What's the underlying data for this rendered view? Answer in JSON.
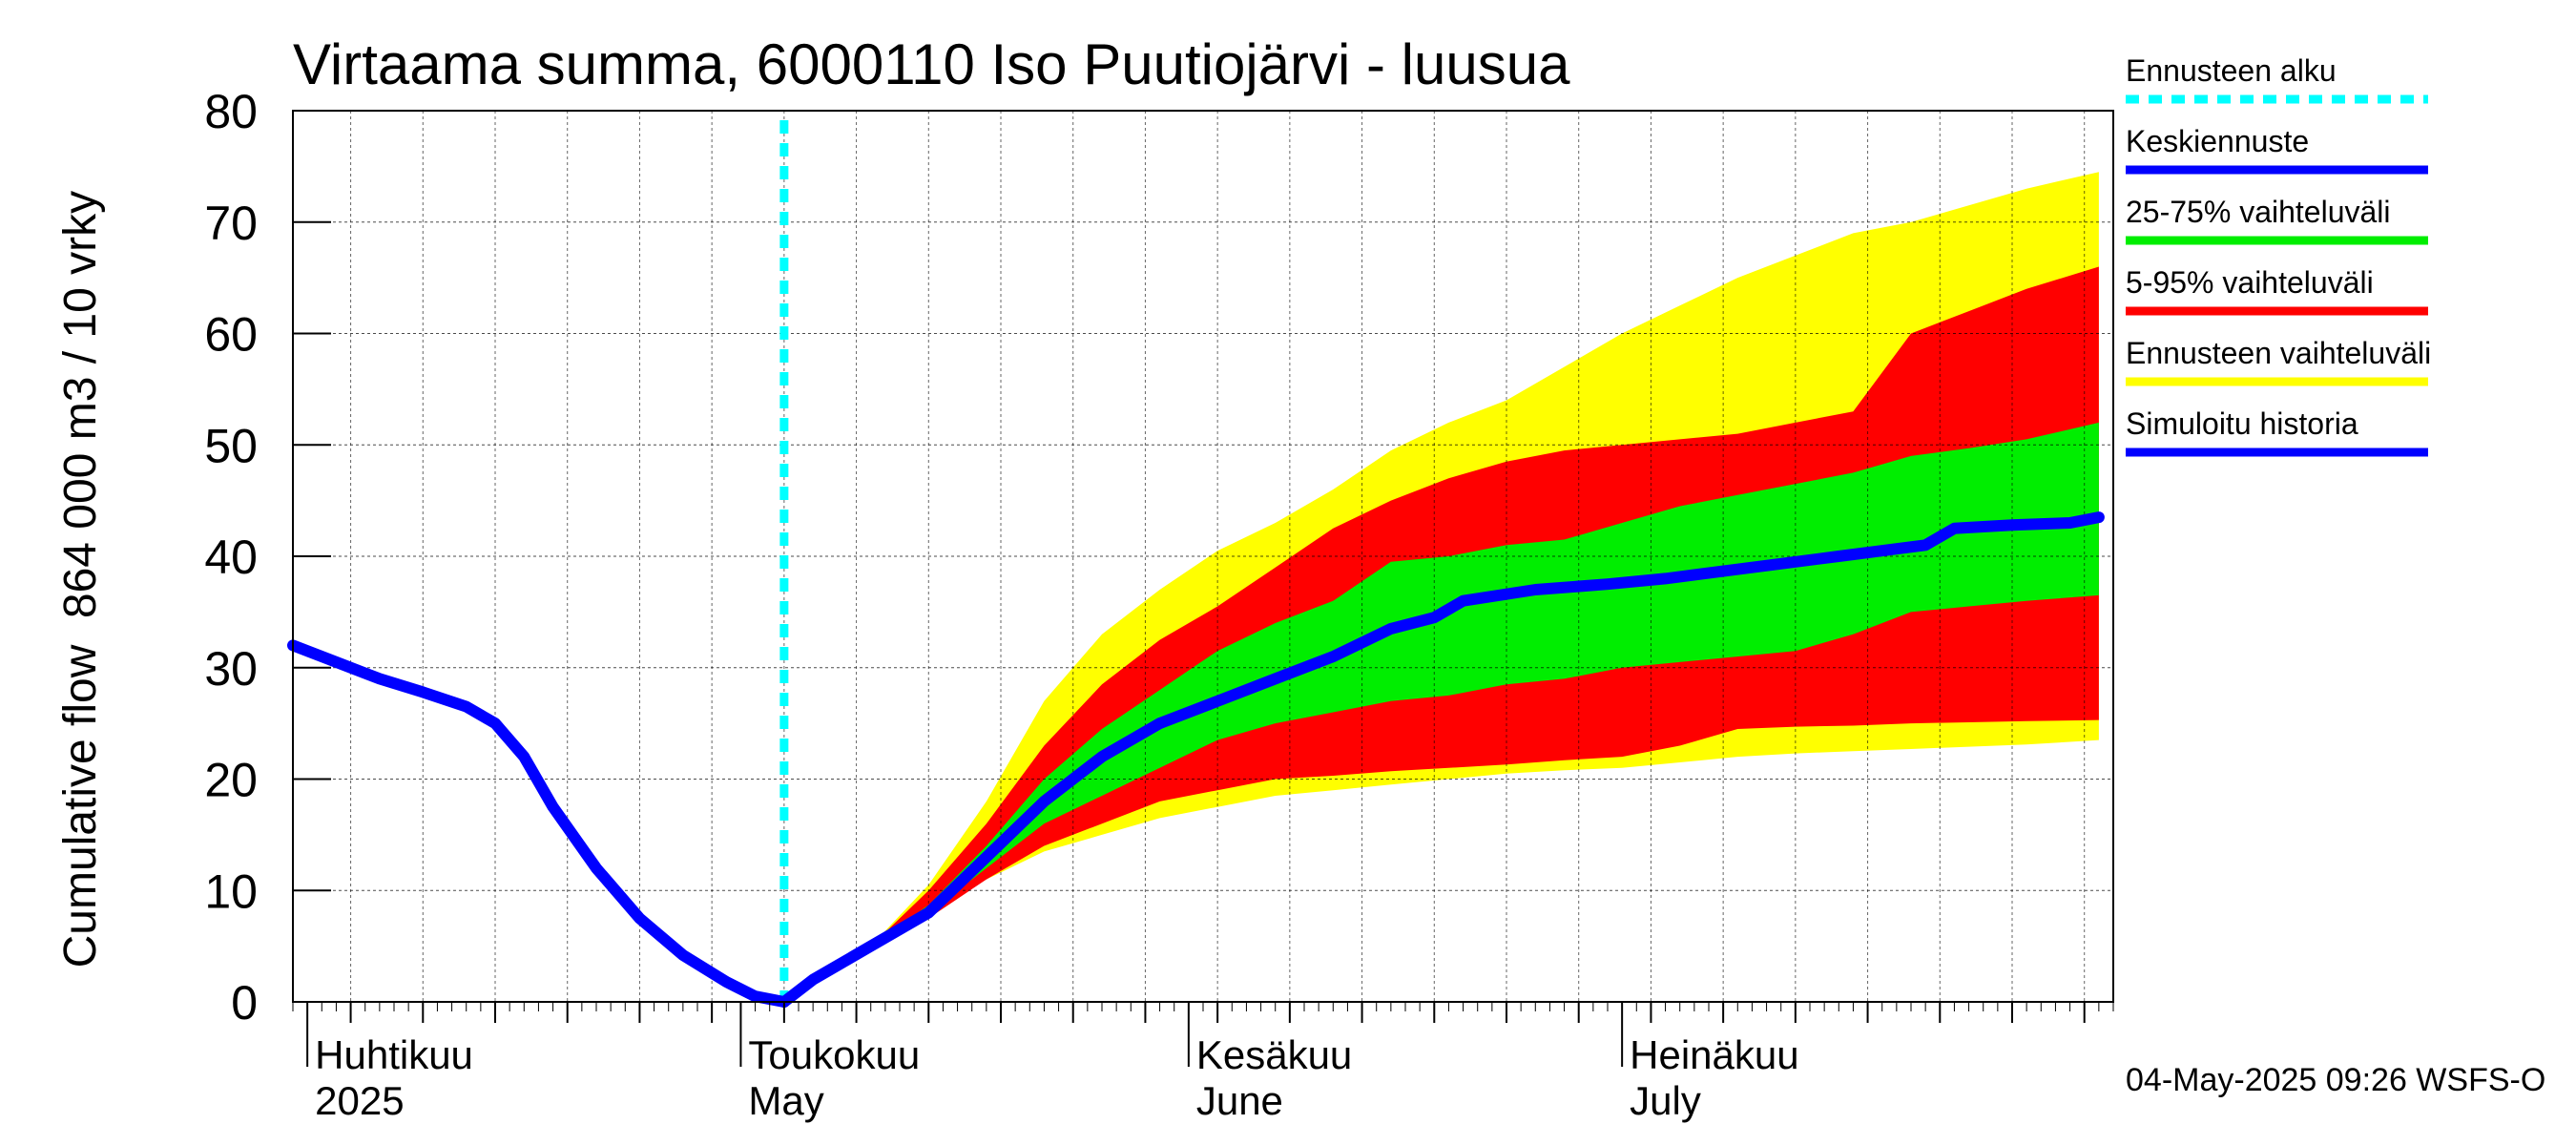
{
  "chart_data": {
    "type": "area",
    "title": "Virtaama summa, 6000110 Iso Puutiojärvi - luusua",
    "ylabel_lines": [
      "864 000 m3 / 10 vrky",
      "Cumulative flow"
    ],
    "xlabel": "",
    "ylim": [
      0,
      80
    ],
    "y_ticks": [
      0,
      10,
      20,
      30,
      40,
      50,
      60,
      70,
      80
    ],
    "xlim": [
      "2025-03-31",
      "2025-08-04"
    ],
    "month_labels": [
      {
        "date": "2025-04-01",
        "fi": "Huhtikuu",
        "en": "2025"
      },
      {
        "date": "2025-05-01",
        "fi": "Toukokuu",
        "en": "May"
      },
      {
        "date": "2025-06-01",
        "fi": "Kesäkuu",
        "en": "June"
      },
      {
        "date": "2025-07-01",
        "fi": "Heinäkuu",
        "en": "July"
      }
    ],
    "forecast_start": "2025-05-04",
    "grid": true,
    "legend_position": "right",
    "legend": [
      {
        "label": "Ennusteen alku",
        "color": "#00ffff",
        "style": "dashed"
      },
      {
        "label": "Keskiennuste",
        "color": "#0000ff",
        "style": "line"
      },
      {
        "label": "25-75% vaihteluväli",
        "color": "#00ee00",
        "style": "line"
      },
      {
        "label": "5-95% vaihteluväli",
        "color": "#ff0000",
        "style": "line"
      },
      {
        "label": "Ennusteen vaihteluväli",
        "color": "#ffff00",
        "style": "line"
      },
      {
        "label": "Simuloitu historia",
        "color": "#0000ff",
        "style": "line"
      }
    ],
    "history": {
      "name": "Simuloitu historia",
      "x": [
        "2025-03-31",
        "2025-04-03",
        "2025-04-06",
        "2025-04-09",
        "2025-04-12",
        "2025-04-14",
        "2025-04-16",
        "2025-04-18",
        "2025-04-21",
        "2025-04-24",
        "2025-04-27",
        "2025-04-30",
        "2025-05-02",
        "2025-05-04"
      ],
      "y": [
        32,
        30.5,
        29,
        27.8,
        26.5,
        25,
        22,
        17.5,
        12,
        7.5,
        4.2,
        1.8,
        0.5,
        0
      ]
    },
    "median": {
      "name": "Keskiennuste",
      "x": [
        "2025-05-04",
        "2025-05-06",
        "2025-05-10",
        "2025-05-14",
        "2025-05-18",
        "2025-05-22",
        "2025-05-26",
        "2025-05-30",
        "2025-06-03",
        "2025-06-07",
        "2025-06-11",
        "2025-06-15",
        "2025-06-18",
        "2025-06-20",
        "2025-06-25",
        "2025-06-30",
        "2025-07-04",
        "2025-07-10",
        "2025-07-16",
        "2025-07-22",
        "2025-07-24",
        "2025-07-28",
        "2025-08-01",
        "2025-08-03"
      ],
      "y": [
        0,
        2,
        5,
        8,
        13,
        18,
        22,
        25,
        27,
        29,
        31,
        33.5,
        34.5,
        36,
        37,
        37.5,
        38,
        39,
        40,
        41,
        42.5,
        42.8,
        43,
        43.5
      ]
    },
    "bands": {
      "x": [
        "2025-05-04",
        "2025-05-10",
        "2025-05-14",
        "2025-05-18",
        "2025-05-22",
        "2025-05-26",
        "2025-05-30",
        "2025-06-03",
        "2025-06-07",
        "2025-06-11",
        "2025-06-15",
        "2025-06-19",
        "2025-06-23",
        "2025-06-27",
        "2025-07-01",
        "2025-07-05",
        "2025-07-09",
        "2025-07-13",
        "2025-07-17",
        "2025-07-21",
        "2025-07-25",
        "2025-07-29",
        "2025-08-03"
      ],
      "p0": [
        0,
        5,
        8,
        11,
        13.5,
        15,
        16.5,
        17.5,
        18.5,
        19,
        19.5,
        20,
        20.5,
        20.8,
        21,
        21.5,
        22,
        22.3,
        22.5,
        22.7,
        22.9,
        23.1,
        23.5
      ],
      "p5": [
        0,
        5,
        7.5,
        11,
        14,
        16,
        18,
        19,
        20,
        20.3,
        20.7,
        21,
        21.3,
        21.7,
        22,
        23,
        24.5,
        24.7,
        24.8,
        25,
        25.1,
        25.2,
        25.3
      ],
      "p25": [
        0,
        5,
        8,
        12,
        16,
        18.5,
        21,
        23.5,
        25,
        26,
        27,
        27.5,
        28.5,
        29,
        30,
        30.5,
        31,
        31.5,
        33,
        35,
        35.5,
        36,
        36.5
      ],
      "p75": [
        0,
        5,
        8.7,
        14,
        20,
        24.5,
        28,
        31.5,
        34,
        36,
        39.5,
        40,
        41,
        41.5,
        43,
        44.5,
        45.5,
        46.5,
        47.5,
        49,
        49.7,
        50.5,
        52
      ],
      "p95": [
        0,
        5,
        10,
        16,
        23,
        28.5,
        32.5,
        35.5,
        39,
        42.5,
        45,
        47,
        48.5,
        49.5,
        50,
        50.5,
        51,
        52,
        53,
        60,
        62,
        64,
        66
      ],
      "p100": [
        0,
        5,
        10.5,
        18,
        27,
        33,
        37,
        40.5,
        43,
        46,
        49.5,
        52,
        54,
        57,
        60,
        62.5,
        65,
        67,
        69,
        70,
        71.5,
        73,
        74.5
      ]
    }
  },
  "footer": {
    "timestamp": "04-May-2025 09:26 WSFS-O"
  }
}
